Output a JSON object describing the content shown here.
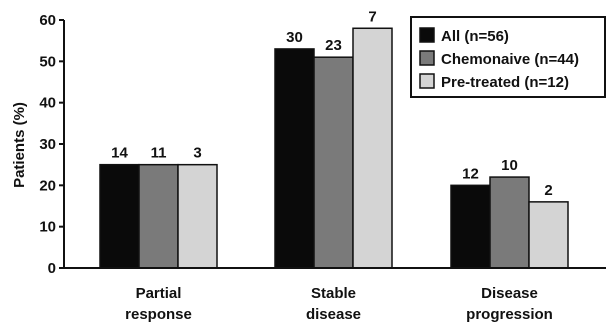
{
  "chart_data": {
    "type": "bar",
    "title": "",
    "xlabel": "",
    "ylabel": "Patients (%)",
    "ylim": [
      0,
      60
    ],
    "yticks": [
      0,
      10,
      20,
      30,
      40,
      50,
      60
    ],
    "grid": false,
    "legend_position": "top-right",
    "categories": [
      [
        "Partial",
        "response"
      ],
      [
        "Stable",
        "disease"
      ],
      [
        "Disease",
        "progression"
      ]
    ],
    "series": [
      {
        "name": "All (n=56)",
        "color": "#0a0a0a",
        "values": [
          25,
          53,
          20
        ],
        "labels": [
          "14",
          "30",
          "12"
        ]
      },
      {
        "name": "Chemonaive (n=44)",
        "color": "#7a7a7a",
        "values": [
          25,
          51,
          22
        ],
        "labels": [
          "11",
          "23",
          "10"
        ]
      },
      {
        "name": "Pre-treated (n=12)",
        "color": "#d4d4d4",
        "values": [
          25,
          58,
          16
        ],
        "labels": [
          "3",
          "7",
          "2"
        ]
      }
    ]
  }
}
